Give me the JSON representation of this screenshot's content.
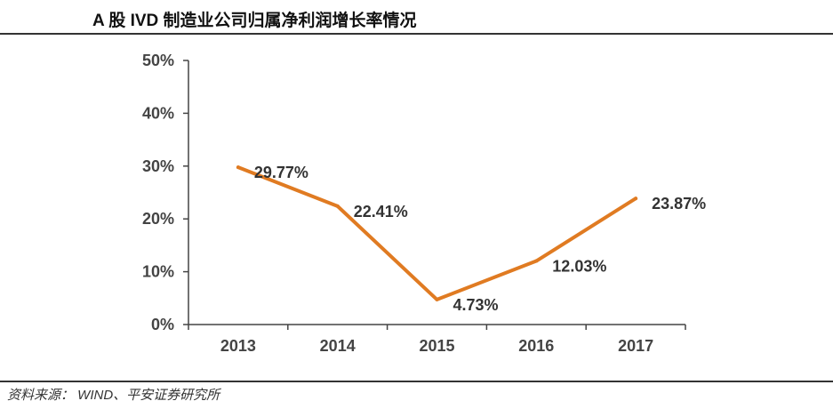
{
  "header": {
    "title": "A 股 IVD 制造业公司归属净利润增长率情况"
  },
  "footer": {
    "source": "资料来源： WIND、平安证券研究所"
  },
  "colors": {
    "line": "#E07B22",
    "axis": "#444444"
  },
  "chart_data": {
    "type": "line",
    "title": "A 股 IVD 制造业公司归属净利润增长率情况",
    "xlabel": "",
    "ylabel": "",
    "categories": [
      "2013",
      "2014",
      "2015",
      "2016",
      "2017"
    ],
    "series": [
      {
        "values": [
          29.77,
          22.41,
          4.73,
          12.03,
          23.87
        ],
        "labels": [
          "29.77%",
          "22.41%",
          "4.73%",
          "12.03%",
          "23.87%"
        ]
      }
    ],
    "ylim": [
      0,
      50
    ],
    "yticks": [
      0,
      10,
      20,
      30,
      40,
      50
    ],
    "ytick_labels": [
      "0%",
      "10%",
      "20%",
      "30%",
      "40%",
      "50%"
    ],
    "grid": false,
    "legend": "none"
  }
}
